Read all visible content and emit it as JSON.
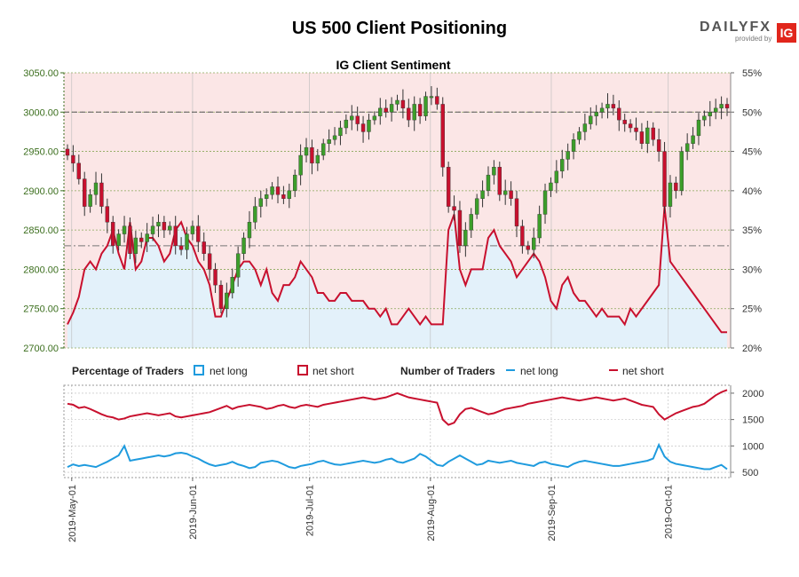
{
  "header": {
    "title": "US 500 Client Positioning",
    "logo_text": "DAILYFX",
    "logo_sub": "provided by",
    "logo_badge": "IG"
  },
  "colors": {
    "net_long": "#1f9bde",
    "net_short": "#c8102e",
    "bull_candle": "#3c9e2a",
    "bear_candle": "#c8102e",
    "short_fill": "#fbe6e6",
    "long_fill": "#e3f1fa"
  },
  "chart_data": {
    "type": "line",
    "title": "IG Client Sentiment",
    "x_ticks": [
      "2019-May-01",
      "2019-Jun-01",
      "2019-Jul-01",
      "2019-Aug-01",
      "2019-Sep-01",
      "2019-Oct-01"
    ],
    "x_range": [
      "2019-04-29",
      "2019-10-17"
    ],
    "price_axis": {
      "ticks": [
        "3050.00",
        "3000.00",
        "2950.00",
        "2900.00",
        "2850.00",
        "2800.00",
        "2750.00",
        "2700.00"
      ],
      "ylim": [
        2700,
        3050
      ]
    },
    "pct_axis": {
      "ticks": [
        "55%",
        "50%",
        "45%",
        "40%",
        "35%",
        "30%",
        "25%",
        "20%"
      ],
      "ylim": [
        20,
        55
      ]
    },
    "traders_axis": {
      "ticks": [
        "2000",
        "1500",
        "1000",
        "500"
      ],
      "ylim": [
        400,
        2150
      ]
    },
    "reference_lines": {
      "price_level": 3000,
      "pct_level": 33
    },
    "legend": {
      "pct_label": "Percentage of Traders",
      "num_label": "Number of Traders",
      "net_long": "net long",
      "net_short": "net short"
    },
    "price_close": [
      2945,
      2935,
      2915,
      2880,
      2895,
      2910,
      2880,
      2860,
      2830,
      2845,
      2855,
      2820,
      2840,
      2835,
      2845,
      2855,
      2860,
      2850,
      2855,
      2830,
      2825,
      2845,
      2855,
      2835,
      2820,
      2800,
      2780,
      2750,
      2770,
      2790,
      2820,
      2840,
      2860,
      2880,
      2890,
      2895,
      2905,
      2895,
      2890,
      2900,
      2920,
      2945,
      2955,
      2935,
      2945,
      2960,
      2965,
      2970,
      2980,
      2990,
      2995,
      2985,
      2975,
      2990,
      2995,
      3005,
      3000,
      3010,
      3015,
      3005,
      2990,
      3010,
      2995,
      3020,
      3020,
      3010,
      2930,
      2880,
      2875,
      2830,
      2850,
      2870,
      2890,
      2900,
      2920,
      2930,
      2895,
      2900,
      2890,
      2855,
      2830,
      2825,
      2840,
      2870,
      2900,
      2910,
      2925,
      2940,
      2950,
      2965,
      2975,
      2985,
      2995,
      3000,
      3005,
      3010,
      3005,
      2990,
      2985,
      2980,
      2975,
      2960,
      2980,
      2965,
      2950,
      2880,
      2910,
      2900,
      2950,
      2960,
      2970,
      2990,
      2995,
      3000,
      3005,
      3010,
      3005
    ],
    "pct_net_long": [
      23,
      24.5,
      26.5,
      30,
      31,
      30,
      32,
      33,
      35,
      32,
      30,
      36,
      30,
      31,
      34,
      34,
      33,
      31,
      32,
      35,
      36,
      34,
      33,
      31,
      30,
      28,
      24,
      24,
      26,
      28,
      30,
      31,
      31,
      30,
      28,
      30,
      27,
      26,
      28,
      28,
      29,
      31,
      30,
      29,
      27,
      27,
      26,
      26,
      27,
      27,
      26,
      26,
      26,
      25,
      25,
      24,
      25,
      23,
      23,
      24,
      25,
      24,
      23,
      24,
      23,
      23,
      23,
      35,
      37,
      30,
      28,
      30,
      30,
      30,
      34,
      35,
      33,
      32,
      31,
      29,
      30,
      31,
      32,
      31,
      29,
      26,
      25,
      28,
      29,
      27,
      26,
      26,
      25,
      24,
      25,
      24,
      24,
      24,
      23,
      25,
      24,
      25,
      26,
      27,
      28,
      38,
      31,
      30,
      29,
      28,
      27,
      26,
      25,
      24,
      23,
      22,
      22
    ],
    "net_long_traders": [
      600,
      650,
      620,
      640,
      620,
      600,
      650,
      700,
      760,
      820,
      1000,
      720,
      740,
      760,
      780,
      800,
      820,
      800,
      820,
      860,
      870,
      850,
      800,
      760,
      700,
      650,
      620,
      640,
      660,
      700,
      650,
      620,
      580,
      600,
      680,
      700,
      720,
      700,
      650,
      600,
      580,
      620,
      640,
      660,
      700,
      720,
      680,
      650,
      640,
      660,
      680,
      700,
      720,
      700,
      680,
      700,
      740,
      760,
      700,
      680,
      720,
      760,
      850,
      800,
      720,
      640,
      620,
      700,
      760,
      820,
      760,
      700,
      640,
      660,
      720,
      700,
      680,
      700,
      720,
      680,
      660,
      640,
      620,
      680,
      700,
      660,
      640,
      620,
      600,
      660,
      700,
      720,
      700,
      680,
      660,
      640,
      620,
      620,
      640,
      660,
      680,
      700,
      720,
      760,
      1020,
      800,
      700,
      660,
      640,
      620,
      600,
      580,
      560,
      560,
      600,
      640,
      560
    ],
    "net_short_traders": [
      1800,
      1780,
      1720,
      1740,
      1700,
      1650,
      1600,
      1560,
      1540,
      1500,
      1520,
      1560,
      1580,
      1600,
      1620,
      1600,
      1580,
      1600,
      1620,
      1560,
      1540,
      1560,
      1580,
      1600,
      1620,
      1640,
      1680,
      1720,
      1760,
      1700,
      1740,
      1760,
      1780,
      1760,
      1740,
      1700,
      1720,
      1760,
      1780,
      1740,
      1720,
      1760,
      1780,
      1760,
      1740,
      1780,
      1800,
      1820,
      1840,
      1860,
      1880,
      1900,
      1920,
      1900,
      1880,
      1900,
      1920,
      1960,
      2000,
      1960,
      1920,
      1900,
      1880,
      1860,
      1840,
      1820,
      1500,
      1400,
      1440,
      1600,
      1700,
      1720,
      1680,
      1640,
      1600,
      1620,
      1660,
      1700,
      1720,
      1740,
      1760,
      1800,
      1820,
      1840,
      1860,
      1880,
      1900,
      1920,
      1900,
      1880,
      1860,
      1880,
      1900,
      1920,
      1900,
      1880,
      1860,
      1880,
      1900,
      1860,
      1820,
      1780,
      1760,
      1740,
      1600,
      1500,
      1560,
      1620,
      1660,
      1700,
      1740,
      1760,
      1800,
      1880,
      1960,
      2020,
      2060
    ]
  }
}
